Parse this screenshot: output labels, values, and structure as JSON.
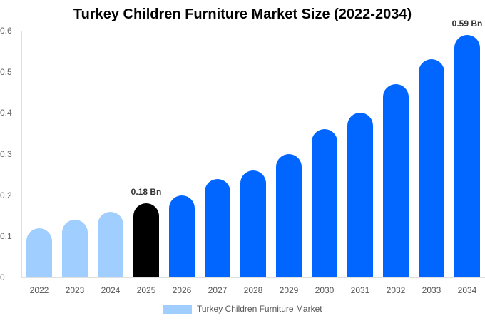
{
  "chart_data": {
    "type": "bar",
    "title": "Turkey Children Furniture Market Size (2022-2034)",
    "xlabel": "",
    "ylabel": "",
    "ylim": [
      0,
      0.6
    ],
    "yticks": [
      "0",
      "0.1",
      "0.2",
      "0.3",
      "0.4",
      "0.5",
      "0.6"
    ],
    "grid": false,
    "legend_position": "bottom",
    "categories": [
      "2022",
      "2023",
      "2024",
      "2025",
      "2026",
      "2027",
      "2028",
      "2029",
      "2030",
      "2031",
      "2032",
      "2033",
      "2034"
    ],
    "series": [
      {
        "name": "Turkey Children Furniture Market",
        "values": [
          0.12,
          0.14,
          0.16,
          0.18,
          0.2,
          0.24,
          0.26,
          0.3,
          0.36,
          0.4,
          0.47,
          0.53,
          0.59
        ]
      }
    ],
    "bar_colors": [
      "#a0cfff",
      "#a0cfff",
      "#a0cfff",
      "#000000",
      "#0066ff",
      "#0066ff",
      "#0066ff",
      "#0066ff",
      "#0066ff",
      "#0066ff",
      "#0066ff",
      "#0066ff",
      "#0066ff"
    ],
    "annotations": [
      {
        "category": "2025",
        "label": "0.18 Bn"
      },
      {
        "category": "2034",
        "label": "0.59 Bn"
      }
    ]
  },
  "legend": {
    "label": "Turkey Children Furniture Market",
    "color": "#a0cfff"
  }
}
